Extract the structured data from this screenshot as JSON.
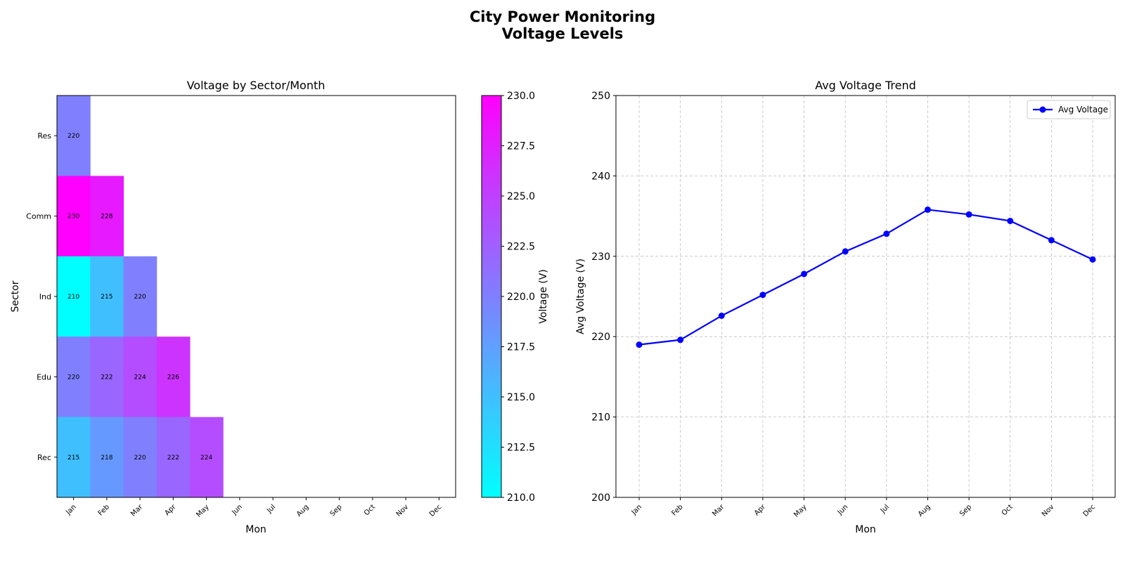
{
  "figure": {
    "title_line1": "City Power Monitoring",
    "title_line2": "Voltage Levels"
  },
  "chart_data": [
    {
      "type": "heatmap",
      "title": "Voltage by Sector/Month",
      "xlabel": "Mon",
      "ylabel": "Sector",
      "colorbar_label": "Voltage (V)",
      "colormap": "cool",
      "vmin": 210,
      "vmax": 230,
      "colorbar_ticks": [
        "210.0",
        "212.5",
        "215.0",
        "217.5",
        "220.0",
        "222.5",
        "225.0",
        "227.5",
        "230.0"
      ],
      "x": [
        "Jan",
        "Feb",
        "Mar",
        "Apr",
        "May",
        "Jun",
        "Jul",
        "Aug",
        "Sep",
        "Oct",
        "Nov",
        "Dec"
      ],
      "y": [
        "Res",
        "Comm",
        "Ind",
        "Edu",
        "Rec"
      ],
      "values": [
        [
          220,
          null,
          null,
          null,
          null,
          null,
          null,
          null,
          null,
          null,
          null,
          null
        ],
        [
          230,
          228,
          null,
          null,
          null,
          null,
          null,
          null,
          null,
          null,
          null,
          null
        ],
        [
          210,
          215,
          220,
          null,
          null,
          null,
          null,
          null,
          null,
          null,
          null,
          null
        ],
        [
          220,
          222,
          224,
          226,
          null,
          null,
          null,
          null,
          null,
          null,
          null,
          null
        ],
        [
          215,
          218,
          220,
          222,
          224,
          null,
          null,
          null,
          null,
          null,
          null,
          null
        ]
      ]
    },
    {
      "type": "line",
      "title": "Avg Voltage Trend",
      "xlabel": "Mon",
      "ylabel": "Avg Voltage (V)",
      "x": [
        "Jan",
        "Feb",
        "Mar",
        "Apr",
        "May",
        "Jun",
        "Jul",
        "Aug",
        "Sep",
        "Oct",
        "Nov",
        "Dec"
      ],
      "ylim": [
        200,
        250
      ],
      "yticks": [
        200,
        210,
        220,
        230,
        240,
        250
      ],
      "grid": true,
      "legend_position": "upper right",
      "series": [
        {
          "name": "Avg Voltage",
          "color": "#0000ff",
          "values": [
            219.0,
            219.6,
            222.6,
            225.2,
            227.8,
            230.6,
            232.8,
            235.8,
            235.2,
            234.4,
            232.0,
            229.6
          ]
        }
      ]
    }
  ]
}
